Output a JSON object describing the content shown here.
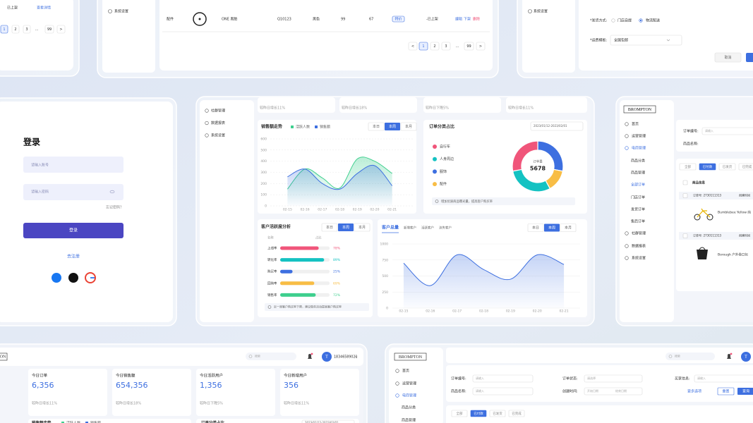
{
  "top_left": {
    "status": "已上架",
    "link": "查看详情",
    "pages": [
      1,
      2,
      3,
      "...",
      99
    ],
    "next": ">"
  },
  "top_middle": {
    "menu": "系统设置",
    "row": {
      "category": "配件",
      "name": "ONE 黑胎",
      "code": "Q10123",
      "color": "黑色",
      "price": 99,
      "stock": 67,
      "tag": "特价",
      "status": "-已上架",
      "actions": [
        "编辑",
        "下架",
        "删除"
      ]
    },
    "prev": "<",
    "pages": [
      1,
      2,
      3,
      "...",
      99
    ],
    "next": ">"
  },
  "top_right": {
    "menu": "系统设置",
    "ship_label": "*发货方式:",
    "ship_options": [
      "门店自提",
      "物流配送"
    ],
    "fee_label": "*运费模板:",
    "fee_value": "全国包邮",
    "cancel": "取消"
  },
  "login": {
    "title": "登录",
    "account": "请输入账号",
    "password": "请输入密码",
    "forgot": "忘记密码？",
    "submit": "登录",
    "register": "去注册"
  },
  "dashboard": {
    "menu": [
      "社群管理",
      "数据报表",
      "系统设置"
    ],
    "trends": [
      "较昨日增长11%",
      "较昨日增长18%",
      "较昨日下降5%",
      "较昨日增长11%"
    ],
    "sales": {
      "type": "line",
      "title": "销售额走势",
      "tabs": [
        "本日",
        "本周",
        "本月"
      ],
      "categories": [
        "02-15",
        "02-16",
        "02-17",
        "02-18",
        "02-19",
        "02-20",
        "02-21"
      ],
      "ylim": [
        0,
        600
      ],
      "yticks": [
        0,
        100,
        200,
        300,
        400,
        500,
        600
      ],
      "series": [
        {
          "name": "活跃人数",
          "color": "#3ecf8e",
          "values": [
            150,
            330,
            250,
            160,
            420,
            400,
            290
          ]
        },
        {
          "name": "销售额",
          "color": "#3d6fe0",
          "values": [
            260,
            330,
            200,
            150,
            290,
            360,
            180
          ]
        }
      ]
    },
    "orders": {
      "type": "pie",
      "title": "订单分类占比",
      "date": "2023/01/12-2023/02/01",
      "categories": [
        "自行车",
        "人身周边",
        "服饰",
        "配件"
      ],
      "colors": [
        "#f0557a",
        "#14c2c2",
        "#3d6fe0",
        "#f8bd45"
      ],
      "values": [
        28,
        30,
        28,
        14
      ],
      "center_label": "订单量",
      "center_value": 5678,
      "note": "增加优质商品曝光量，提高客户购买率"
    },
    "activity": {
      "type": "bar",
      "title": "客户活跃度分析",
      "tabs": [
        "本日",
        "本周",
        "本月"
      ],
      "header": [
        "名称",
        "占比"
      ],
      "categories": [
        "上线率",
        "转化率",
        "购买率",
        "回购率",
        "销售率"
      ],
      "colors": [
        "#f0557a",
        "#14c2c2",
        "#3d6fe0",
        "#f8bd45",
        "#3ecf8e"
      ],
      "values": [
        78,
        89,
        25,
        69,
        72
      ],
      "value_labels": [
        "78%",
        "89%",
        "25%",
        "69%",
        "72%"
      ],
      "xlim": [
        0,
        100
      ],
      "note": "近一周客户购买率下降，建议做些活动提高客户购买率"
    },
    "customers": {
      "type": "line",
      "title": "客户总量",
      "filters": [
        "新增客户",
        "活跃客户",
        "流失客户"
      ],
      "tabs": [
        "本日",
        "本周",
        "本月"
      ],
      "categories": [
        "02-15",
        "02-16",
        "02-17",
        "02-18",
        "02-19",
        "02-20",
        "02-21"
      ],
      "ylim": [
        0,
        1000
      ],
      "yticks": [
        0,
        250,
        500,
        750,
        1000
      ],
      "color": "#3d6fe0",
      "values": [
        700,
        350,
        830,
        600,
        450,
        830,
        680
      ]
    }
  },
  "order_page": {
    "logo": "BROMPTON",
    "menu": [
      "首页",
      "运营管理",
      "电商管理",
      "商品分类",
      "商品管理",
      "全部订单",
      "门店订单",
      "发货订单",
      "售后订单",
      "社群管理",
      "数据报表",
      "系统设置"
    ],
    "order_no": "订单编号:",
    "product": "商品名称:",
    "input": "请输入",
    "tabs": [
      "全部",
      "已付款",
      "已发货",
      "已完成"
    ],
    "info": "商品信息",
    "order_label": "订单号: 2730111313",
    "created": "创建时间",
    "items": [
      "Bumblebee Yellow 纯",
      "Borough 户外卷口包"
    ]
  },
  "home": {
    "logo": "ON",
    "search": "搜索",
    "avatar": "T",
    "user": "18346589021",
    "stats": [
      {
        "label": "今日订单",
        "value": "6,356",
        "trend": "较昨日增长11%"
      },
      {
        "label": "今日销售额",
        "value": "654,356",
        "trend": "较昨日增长18%"
      },
      {
        "label": "今日活跃用户",
        "value": "1,356",
        "trend": "较昨日下降5%"
      },
      {
        "label": "今日新增用户",
        "value": "356",
        "trend": "较昨日增长11%"
      }
    ],
    "sales_title": "销售额走势",
    "legend": [
      "活跃人数",
      "销售额"
    ],
    "orders_title": "订单分类占比",
    "date": "2023/01/12-2023/02/01"
  },
  "order_search": {
    "logo": "BROMPTON",
    "menu": [
      "首页",
      "运营管理",
      "电商管理",
      "商品分类",
      "商品管理"
    ],
    "search": "搜索",
    "avatar": "T",
    "fields": [
      "订单编号:",
      "订单状态:",
      "买家信息:",
      "商品名称:",
      "创建时间:"
    ],
    "input": "请输入",
    "select": "请选择",
    "start": "开始日期",
    "end": "结束日期",
    "more": "更多选项",
    "reset": "重置",
    "query": "查询",
    "tabs": [
      "全部",
      "已付款",
      "已发货",
      "已完成"
    ]
  }
}
